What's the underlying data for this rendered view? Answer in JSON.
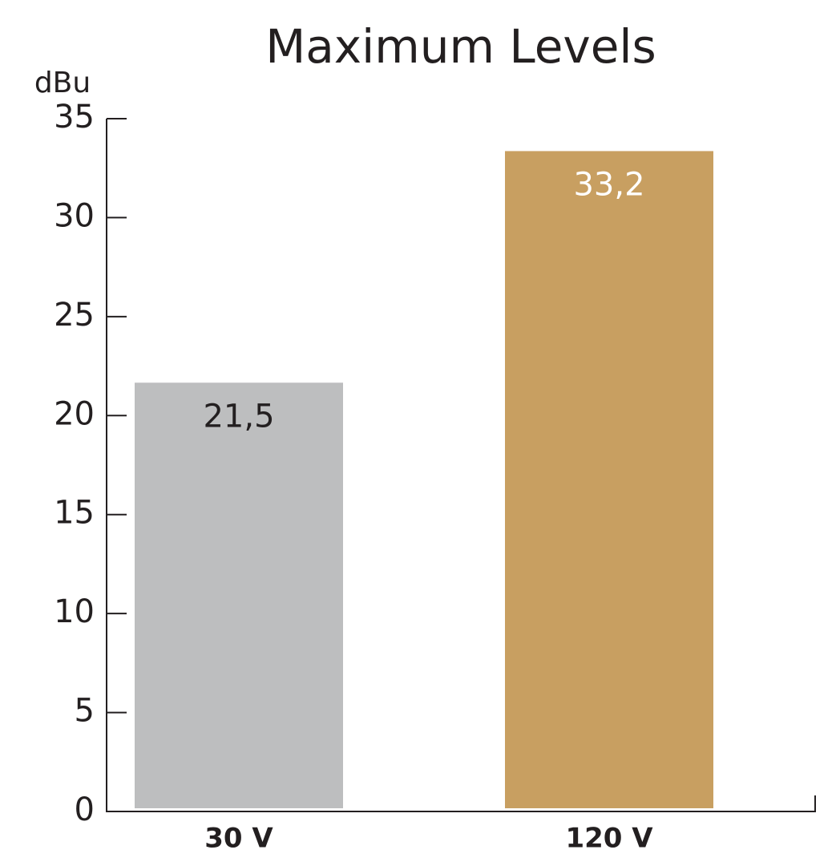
{
  "chart_data": {
    "type": "bar",
    "title": "Maximum Levels",
    "y_label": "dBu",
    "categories": [
      "30 V",
      "120 V"
    ],
    "values": [
      21.5,
      33.2
    ],
    "value_labels": [
      "21,5",
      "33,2"
    ],
    "colors": [
      "#bdbebf",
      "#c89f61"
    ],
    "ylim": [
      0,
      35
    ],
    "yticks": [
      0,
      5,
      10,
      15,
      20,
      25,
      30,
      35
    ],
    "grid": false
  }
}
